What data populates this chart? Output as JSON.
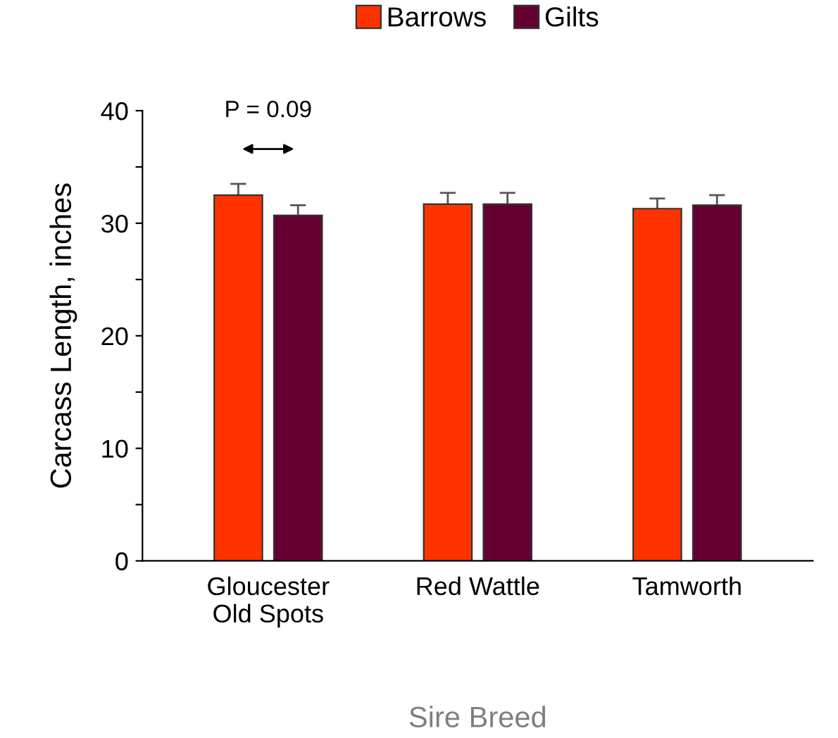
{
  "chart_data": {
    "type": "bar",
    "xlabel": "Sire Breed",
    "ylabel": "Carcass Length, inches",
    "categories": [
      "Gloucester\nOld Spots",
      "Red Wattle",
      "Tamworth"
    ],
    "series": [
      {
        "name": "Barrows",
        "color": "#ff3300",
        "values": [
          32.5,
          31.7,
          31.3
        ],
        "errors": [
          1.0,
          1.0,
          0.9
        ]
      },
      {
        "name": "Gilts",
        "color": "#660033",
        "values": [
          30.7,
          31.7,
          31.6
        ],
        "errors": [
          0.9,
          1.0,
          0.9
        ]
      }
    ],
    "ylim": [
      0,
      40
    ],
    "yticks": [
      0,
      {
        "value": 5,
        "label": null
      },
      10,
      {
        "value": 15,
        "label": null
      },
      20,
      {
        "value": 25,
        "label": null
      },
      30,
      {
        "value": 35,
        "label": null
      },
      40
    ],
    "annotations": [
      "P = 0.09"
    ],
    "grid": false,
    "legend": "top"
  }
}
